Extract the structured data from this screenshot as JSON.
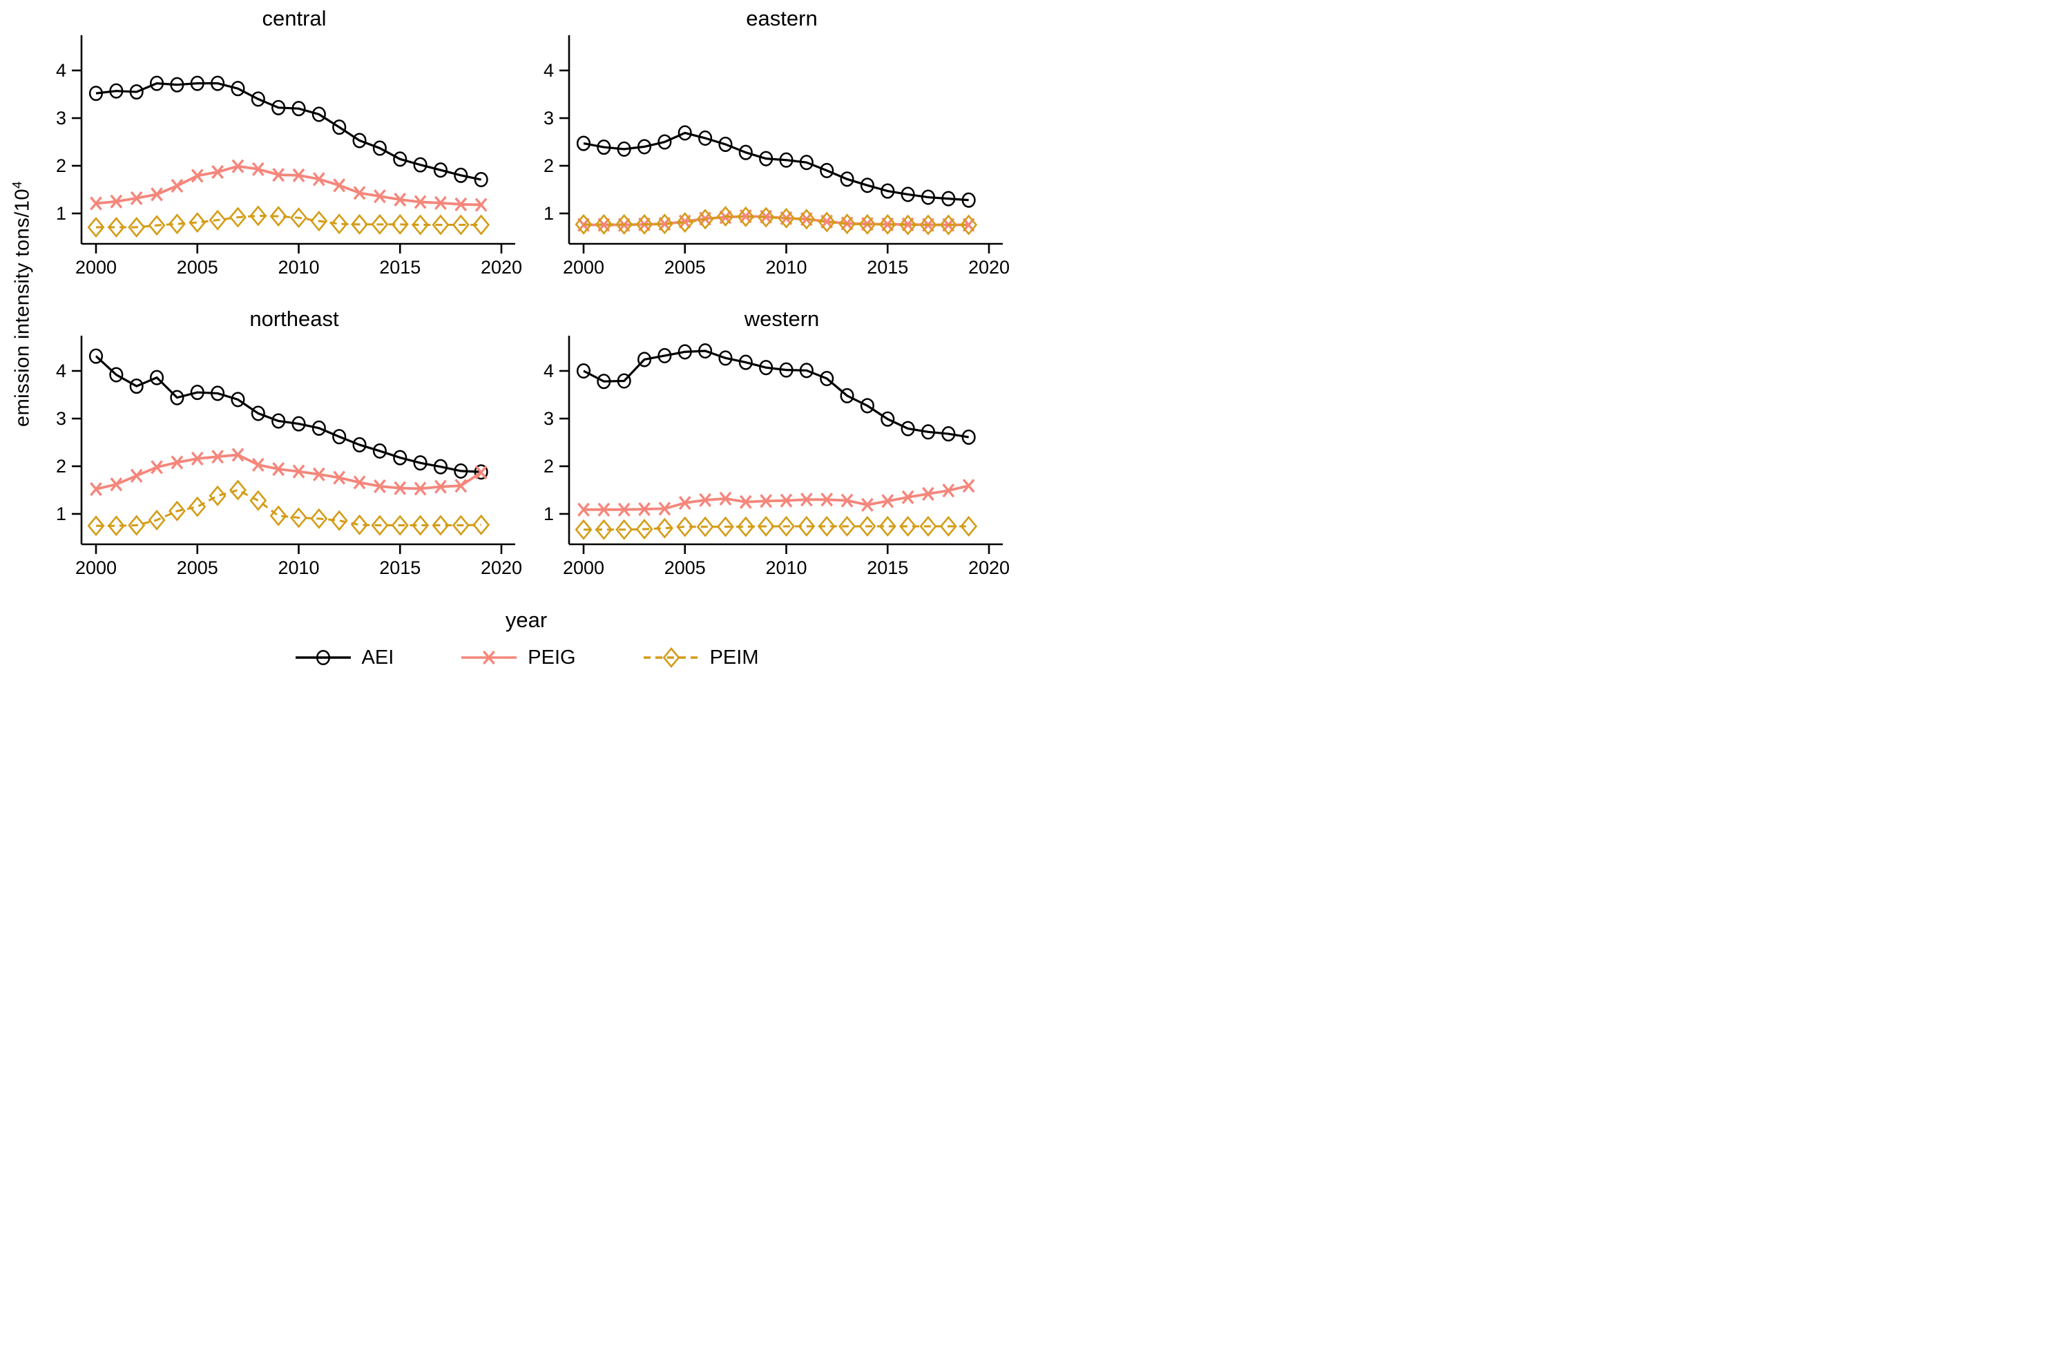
{
  "figure": {
    "ylabel_base": "emission intensity tons/10",
    "ylabel_exponent": "4",
    "xlabel": "year"
  },
  "series_meta": [
    {
      "name": "AEI",
      "color": "#000000",
      "marker": "circle",
      "line_dash": "none",
      "line_width": 3.2
    },
    {
      "name": "PEIG",
      "color": "#f5867b",
      "marker": "x",
      "line_dash": "none",
      "line_width": 3.8
    },
    {
      "name": "PEIM",
      "color": "#d49c15",
      "marker": "diamond",
      "line_dash": "10,7",
      "line_width": 3.0
    }
  ],
  "axes": {
    "x_ticks": [
      2000,
      2005,
      2010,
      2015,
      2020
    ],
    "y_ticks": [
      1,
      2,
      3,
      4
    ],
    "x_range": [
      1999.3,
      2020.7
    ],
    "y_range": [
      0.38,
      4.73
    ],
    "grid": false
  },
  "chart_data": [
    {
      "type": "line",
      "title": "central",
      "x": [
        2000,
        2001,
        2002,
        2003,
        2004,
        2005,
        2006,
        2007,
        2008,
        2009,
        2010,
        2011,
        2012,
        2013,
        2014,
        2015,
        2016,
        2017,
        2018,
        2019
      ],
      "series": [
        {
          "name": "AEI",
          "values": [
            3.52,
            3.57,
            3.55,
            3.73,
            3.7,
            3.73,
            3.73,
            3.62,
            3.4,
            3.22,
            3.2,
            3.08,
            2.81,
            2.53,
            2.37,
            2.14,
            2.02,
            1.91,
            1.8,
            1.71
          ]
        },
        {
          "name": "PEIG",
          "values": [
            1.21,
            1.25,
            1.32,
            1.4,
            1.58,
            1.79,
            1.87,
            1.99,
            1.93,
            1.81,
            1.8,
            1.72,
            1.59,
            1.43,
            1.36,
            1.29,
            1.24,
            1.22,
            1.19,
            1.18
          ]
        },
        {
          "name": "PEIM",
          "values": [
            0.71,
            0.71,
            0.71,
            0.75,
            0.78,
            0.81,
            0.86,
            0.92,
            0.95,
            0.94,
            0.91,
            0.84,
            0.78,
            0.77,
            0.77,
            0.77,
            0.76,
            0.76,
            0.76,
            0.76
          ]
        }
      ]
    },
    {
      "type": "line",
      "title": "eastern",
      "x": [
        2000,
        2001,
        2002,
        2003,
        2004,
        2005,
        2006,
        2007,
        2008,
        2009,
        2010,
        2011,
        2012,
        2013,
        2014,
        2015,
        2016,
        2017,
        2018,
        2019
      ],
      "series": [
        {
          "name": "AEI",
          "values": [
            2.47,
            2.39,
            2.35,
            2.4,
            2.5,
            2.69,
            2.58,
            2.45,
            2.28,
            2.15,
            2.12,
            2.07,
            1.9,
            1.72,
            1.59,
            1.47,
            1.4,
            1.34,
            1.31,
            1.28
          ]
        },
        {
          "name": "PEIG",
          "values": [
            0.76,
            0.76,
            0.76,
            0.77,
            0.78,
            0.83,
            0.89,
            0.92,
            0.94,
            0.93,
            0.9,
            0.88,
            0.83,
            0.79,
            0.78,
            0.77,
            0.77,
            0.76,
            0.76,
            0.76
          ]
        },
        {
          "name": "PEIM",
          "values": [
            0.77,
            0.77,
            0.77,
            0.77,
            0.78,
            0.81,
            0.88,
            0.94,
            0.93,
            0.92,
            0.9,
            0.88,
            0.82,
            0.78,
            0.77,
            0.77,
            0.76,
            0.76,
            0.76,
            0.76
          ]
        }
      ]
    },
    {
      "type": "line",
      "title": "northeast",
      "x": [
        2000,
        2001,
        2002,
        2003,
        2004,
        2005,
        2006,
        2007,
        2008,
        2009,
        2010,
        2011,
        2012,
        2013,
        2014,
        2015,
        2016,
        2017,
        2018,
        2019
      ],
      "series": [
        {
          "name": "AEI",
          "values": [
            4.31,
            3.92,
            3.68,
            3.86,
            3.44,
            3.55,
            3.53,
            3.4,
            3.11,
            2.95,
            2.89,
            2.8,
            2.62,
            2.45,
            2.32,
            2.18,
            2.07,
            1.99,
            1.9,
            1.88
          ]
        },
        {
          "name": "PEIG",
          "values": [
            1.52,
            1.62,
            1.8,
            1.98,
            2.08,
            2.16,
            2.2,
            2.24,
            2.03,
            1.94,
            1.89,
            1.83,
            1.76,
            1.66,
            1.58,
            1.54,
            1.53,
            1.57,
            1.59,
            1.87
          ]
        },
        {
          "name": "PEIM",
          "values": [
            0.75,
            0.75,
            0.76,
            0.87,
            1.06,
            1.15,
            1.38,
            1.5,
            1.28,
            0.96,
            0.92,
            0.9,
            0.86,
            0.77,
            0.76,
            0.76,
            0.76,
            0.76,
            0.76,
            0.77
          ]
        }
      ]
    },
    {
      "type": "line",
      "title": "western",
      "x": [
        2000,
        2001,
        2002,
        2003,
        2004,
        2005,
        2006,
        2007,
        2008,
        2009,
        2010,
        2011,
        2012,
        2013,
        2014,
        2015,
        2016,
        2017,
        2018,
        2019
      ],
      "series": [
        {
          "name": "AEI",
          "values": [
            4.0,
            3.78,
            3.79,
            4.24,
            4.32,
            4.4,
            4.42,
            4.27,
            4.18,
            4.07,
            4.02,
            4.01,
            3.84,
            3.48,
            3.27,
            2.99,
            2.79,
            2.72,
            2.68,
            2.61
          ]
        },
        {
          "name": "PEIG",
          "values": [
            1.09,
            1.09,
            1.09,
            1.1,
            1.11,
            1.23,
            1.29,
            1.32,
            1.25,
            1.27,
            1.28,
            1.3,
            1.3,
            1.28,
            1.19,
            1.27,
            1.35,
            1.42,
            1.49,
            1.59
          ]
        },
        {
          "name": "PEIM",
          "values": [
            0.67,
            0.67,
            0.67,
            0.68,
            0.7,
            0.73,
            0.73,
            0.73,
            0.73,
            0.74,
            0.74,
            0.74,
            0.74,
            0.74,
            0.74,
            0.74,
            0.74,
            0.74,
            0.74,
            0.74
          ]
        }
      ]
    }
  ]
}
